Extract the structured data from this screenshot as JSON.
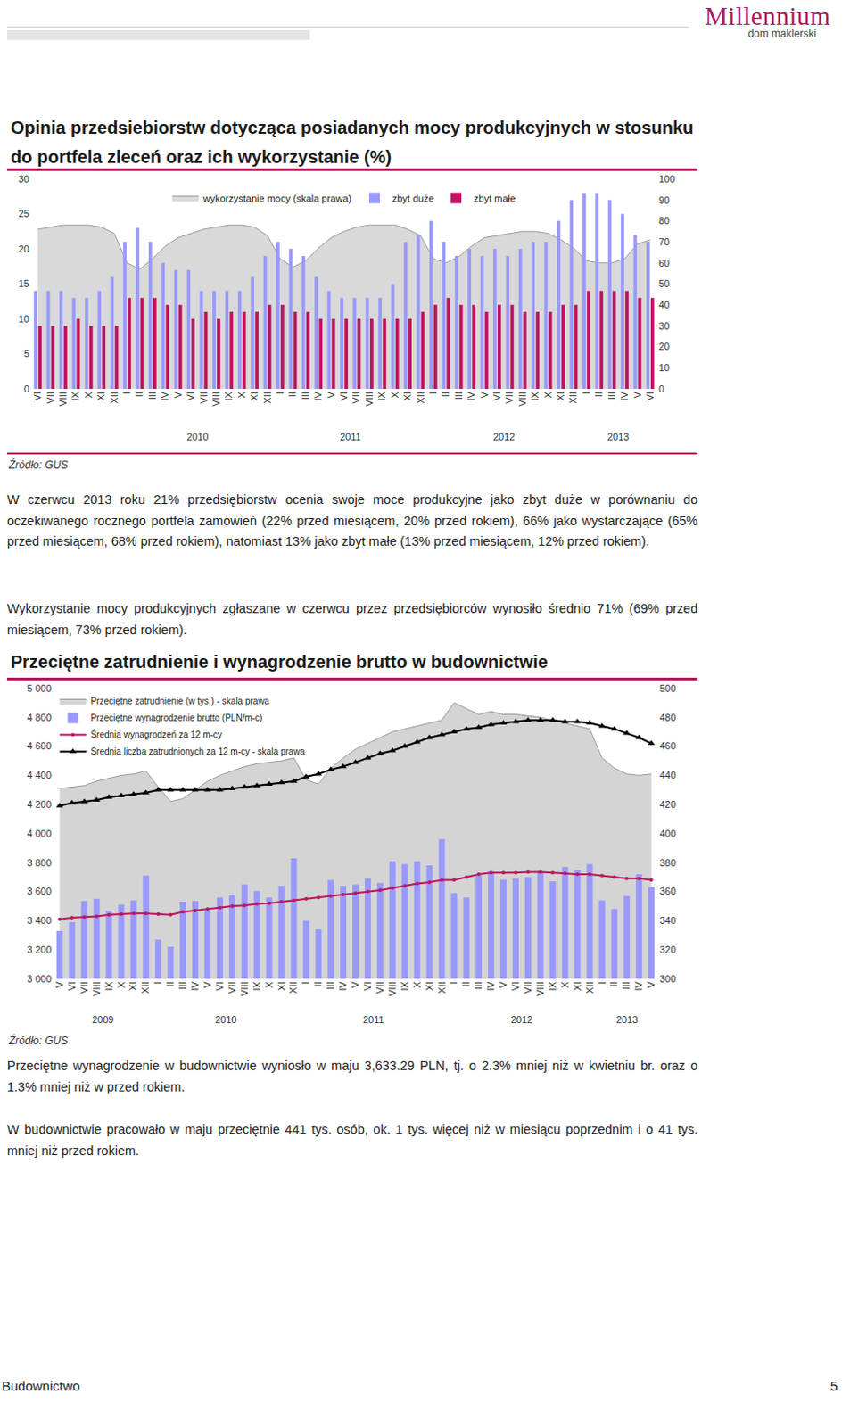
{
  "header": {
    "logo": "Millennium",
    "logo_sub": "dom maklerski"
  },
  "chart_data": [
    {
      "type": "bar",
      "title": "Opinia przedsiebiorstw dotycząca posiadanych mocy produkcyjnych w stosunku do portfela zleceń oraz ich wykorzystanie (%)",
      "source": "Źródło: GUS",
      "categories": [
        "VI",
        "VII",
        "VIII",
        "IX",
        "X",
        "XI",
        "XII",
        "I",
        "II",
        "III",
        "IV",
        "V",
        "VI",
        "VII",
        "VIII",
        "IX",
        "X",
        "XI",
        "XII",
        "I",
        "II",
        "III",
        "IV",
        "V",
        "VI",
        "VII",
        "VIII",
        "IX",
        "X",
        "XI",
        "XII",
        "I",
        "II",
        "III",
        "IV",
        "V",
        "VI",
        "VII",
        "VIII",
        "IX",
        "X",
        "XI",
        "XII",
        "I",
        "II",
        "III",
        "IV",
        "V",
        "VI"
      ],
      "category_years": [
        null,
        null,
        null,
        null,
        null,
        null,
        null,
        "2010",
        "2010",
        "2010",
        "2010",
        "2010",
        "2010",
        "2010",
        "2010",
        "2010",
        "2010",
        "2010",
        "2010",
        "2011",
        "2011",
        "2011",
        "2011",
        "2011",
        "2011",
        "2011",
        "2011",
        "2011",
        "2011",
        "2011",
        "2011",
        "2012",
        "2012",
        "2012",
        "2012",
        "2012",
        "2012",
        "2012",
        "2012",
        "2012",
        "2012",
        "2012",
        "2012",
        "2013",
        "2013",
        "2013",
        "2013",
        "2013",
        "2013"
      ],
      "ylim": [
        0,
        30
      ],
      "yticks": [
        0,
        5,
        10,
        15,
        20,
        25,
        30
      ],
      "y2lim": [
        0,
        100
      ],
      "y2ticks": [
        0,
        10,
        20,
        30,
        40,
        50,
        60,
        70,
        80,
        90,
        100
      ],
      "grid": false,
      "legend": "top",
      "series": [
        {
          "name": "wykorzystanie mocy (skala prawa)",
          "type": "area",
          "axis": "y2",
          "color": "#d9d9d9",
          "values": [
            76,
            77,
            78,
            78,
            78,
            77,
            74,
            60,
            57,
            62,
            68,
            72,
            74,
            76,
            77,
            78,
            78,
            77,
            73,
            62,
            58,
            61,
            67,
            72,
            75,
            77,
            78,
            78,
            78,
            76,
            73,
            62,
            60,
            63,
            68,
            72,
            73,
            74,
            75,
            75,
            74,
            71,
            67,
            61,
            60,
            60,
            62,
            69,
            71
          ]
        },
        {
          "name": "zbyt duże",
          "type": "bar",
          "color": "#9999ff",
          "values": [
            14,
            14,
            14,
            13,
            13,
            14,
            16,
            21,
            23,
            21,
            18,
            17,
            17,
            14,
            14,
            14,
            14,
            16,
            19,
            21,
            20,
            19,
            16,
            14,
            13,
            13,
            13,
            13,
            15,
            21,
            22,
            24,
            21,
            19,
            20,
            19,
            20,
            19,
            20,
            21,
            21,
            24,
            27,
            28,
            28,
            27,
            25,
            22,
            21
          ]
        },
        {
          "name": "zbyt małe",
          "type": "bar",
          "color": "#c0135f",
          "values": [
            9,
            9,
            9,
            10,
            9,
            9,
            9,
            13,
            13,
            13,
            12,
            12,
            10,
            11,
            10,
            11,
            11,
            11,
            12,
            12,
            11,
            11,
            10,
            10,
            10,
            10,
            10,
            10,
            10,
            10,
            11,
            12,
            13,
            12,
            12,
            11,
            12,
            12,
            11,
            11,
            11,
            12,
            12,
            14,
            14,
            14,
            14,
            13,
            13
          ]
        }
      ]
    },
    {
      "type": "bar",
      "title": "Przeciętne zatrudnienie i wynagrodzenie brutto w budownictwie",
      "source": "Źródło: GUS",
      "categories": [
        "V",
        "VI",
        "VII",
        "VIII",
        "IX",
        "X",
        "XI",
        "XII",
        "I",
        "II",
        "III",
        "IV",
        "V",
        "VI",
        "VII",
        "VIII",
        "IX",
        "X",
        "XI",
        "XII",
        "I",
        "II",
        "III",
        "IV",
        "V",
        "VI",
        "VII",
        "VIII",
        "IX",
        "X",
        "XI",
        "XII",
        "I",
        "II",
        "III",
        "IV",
        "V",
        "VI",
        "VII",
        "VIII",
        "IX",
        "X",
        "XI",
        "XII",
        "I",
        "II",
        "III",
        "IV",
        "V"
      ],
      "category_years": [
        "2009",
        "2009",
        "2009",
        "2009",
        "2009",
        "2009",
        "2009",
        "2009",
        "2010",
        "2010",
        "2010",
        "2010",
        "2010",
        "2010",
        "2010",
        "2010",
        "2010",
        "2010",
        "2010",
        "2010",
        "2011",
        "2011",
        "2011",
        "2011",
        "2011",
        "2011",
        "2011",
        "2011",
        "2011",
        "2011",
        "2011",
        "2011",
        "2012",
        "2012",
        "2012",
        "2012",
        "2012",
        "2012",
        "2012",
        "2012",
        "2012",
        "2012",
        "2012",
        "2012",
        "2013",
        "2013",
        "2013",
        "2013",
        "2013"
      ],
      "ylim": [
        3000,
        5000
      ],
      "yticks": [
        {
          "value": 3000,
          "label": "3 000"
        },
        {
          "value": 3200,
          "label": "3 200"
        },
        {
          "value": 3400,
          "label": "3 400"
        },
        {
          "value": 3600,
          "label": "3 600"
        },
        {
          "value": 3800,
          "label": "3 800"
        },
        {
          "value": 4000,
          "label": "4 000"
        },
        {
          "value": 4200,
          "label": "4 200"
        },
        {
          "value": 4400,
          "label": "4 400"
        },
        {
          "value": 4600,
          "label": "4 600"
        },
        {
          "value": 4800,
          "label": "4 800"
        },
        {
          "value": 5000,
          "label": "5 000"
        }
      ],
      "y2lim": [
        300,
        500
      ],
      "y2ticks": [
        300,
        320,
        340,
        360,
        380,
        400,
        420,
        440,
        460,
        480,
        500
      ],
      "grid": false,
      "legend": "top left",
      "series": [
        {
          "name": "Przeciętne zatrudnienie (w tys.) - skala prawa",
          "type": "area",
          "axis": "y2",
          "color": "#d4d4d4",
          "values": [
            431,
            432,
            433,
            436,
            438,
            440,
            441,
            443,
            432,
            422,
            424,
            430,
            436,
            440,
            443,
            446,
            448,
            449,
            450,
            452,
            437,
            434,
            445,
            452,
            458,
            462,
            466,
            470,
            472,
            474,
            476,
            478,
            490,
            486,
            482,
            484,
            482,
            482,
            481,
            480,
            478,
            476,
            474,
            472,
            452,
            445,
            441,
            440,
            441
          ]
        },
        {
          "name": "Przeciętne wynagrodzenie brutto (PLN/m-c)",
          "type": "bar",
          "color": "#9999ff",
          "values": [
            3330,
            3390,
            3535,
            3550,
            3470,
            3510,
            3540,
            3710,
            3270,
            3220,
            3530,
            3535,
            3470,
            3560,
            3580,
            3650,
            3605,
            3560,
            3640,
            3830,
            3400,
            3340,
            3680,
            3640,
            3650,
            3690,
            3660,
            3810,
            3790,
            3810,
            3780,
            3960,
            3590,
            3560,
            3710,
            3740,
            3681,
            3690,
            3700,
            3740,
            3670,
            3770,
            3750,
            3790,
            3540,
            3480,
            3570,
            3719,
            3633.29
          ]
        },
        {
          "name": "Średnia wynagrodzeń za 12 m-cy",
          "type": "line",
          "color": "#b8195f",
          "marker": "circle",
          "values": [
            3410,
            3420,
            3425,
            3430,
            3440,
            3445,
            3450,
            3450,
            3445,
            3440,
            3460,
            3470,
            3480,
            3490,
            3500,
            3505,
            3515,
            3520,
            3530,
            3540,
            3550,
            3560,
            3570,
            3580,
            3590,
            3600,
            3610,
            3625,
            3640,
            3655,
            3665,
            3680,
            3680,
            3700,
            3720,
            3730,
            3730,
            3730,
            3735,
            3735,
            3730,
            3725,
            3720,
            3720,
            3710,
            3700,
            3690,
            3690,
            3680
          ]
        },
        {
          "name": "Średnia liczba zatrudnionych za 12 m-cy - skala prawa",
          "type": "line",
          "axis": "y2",
          "color": "#000000",
          "marker": "triangle",
          "values": [
            419,
            421,
            422,
            423,
            425,
            426,
            427,
            428,
            430,
            430,
            430,
            430,
            430,
            430,
            431,
            432,
            433,
            434,
            435,
            436,
            439,
            441,
            444,
            446,
            449,
            452,
            455,
            457,
            460,
            463,
            466,
            468,
            470,
            472,
            473,
            475,
            476,
            477,
            478,
            478,
            478,
            477,
            477,
            476,
            474,
            472,
            469,
            466,
            462
          ]
        }
      ]
    }
  ],
  "document": {
    "paragraphs_1": [
      "W czerwcu 2013 roku 21% przedsiębiorstw ocenia swoje moce produkcyjne jako zbyt duże w porównaniu do oczekiwanego rocznego portfela zamówień (22% przed miesiącem, 20% przed rokiem), 66% jako wystarczające (65% przed miesiącem, 68% przed rokiem), natomiast 13% jako zbyt małe (13% przed miesiącem, 12% przed rokiem).",
      "Wykorzystanie mocy produkcyjnych zgłaszane w czerwcu przez przedsiębiorców wynosiło średnio 71% (69% przed miesiącem, 73% przed rokiem)."
    ],
    "paragraphs_2": [
      "Przeciętne wynagrodzenie w budownictwie wyniosło w maju 3,633.29 PLN, tj. o 2.3% mniej niż w kwietniu br. oraz o 1.3% mniej niż w przed rokiem.",
      "W budownictwie pracowało w maju przeciętnie 441 tys. osób, ok. 1 tys. więcej niż w miesiącu poprzednim i o 41 tys. mniej niż przed rokiem."
    ],
    "footer": {
      "section": "Budownictwo",
      "page": 5
    }
  }
}
